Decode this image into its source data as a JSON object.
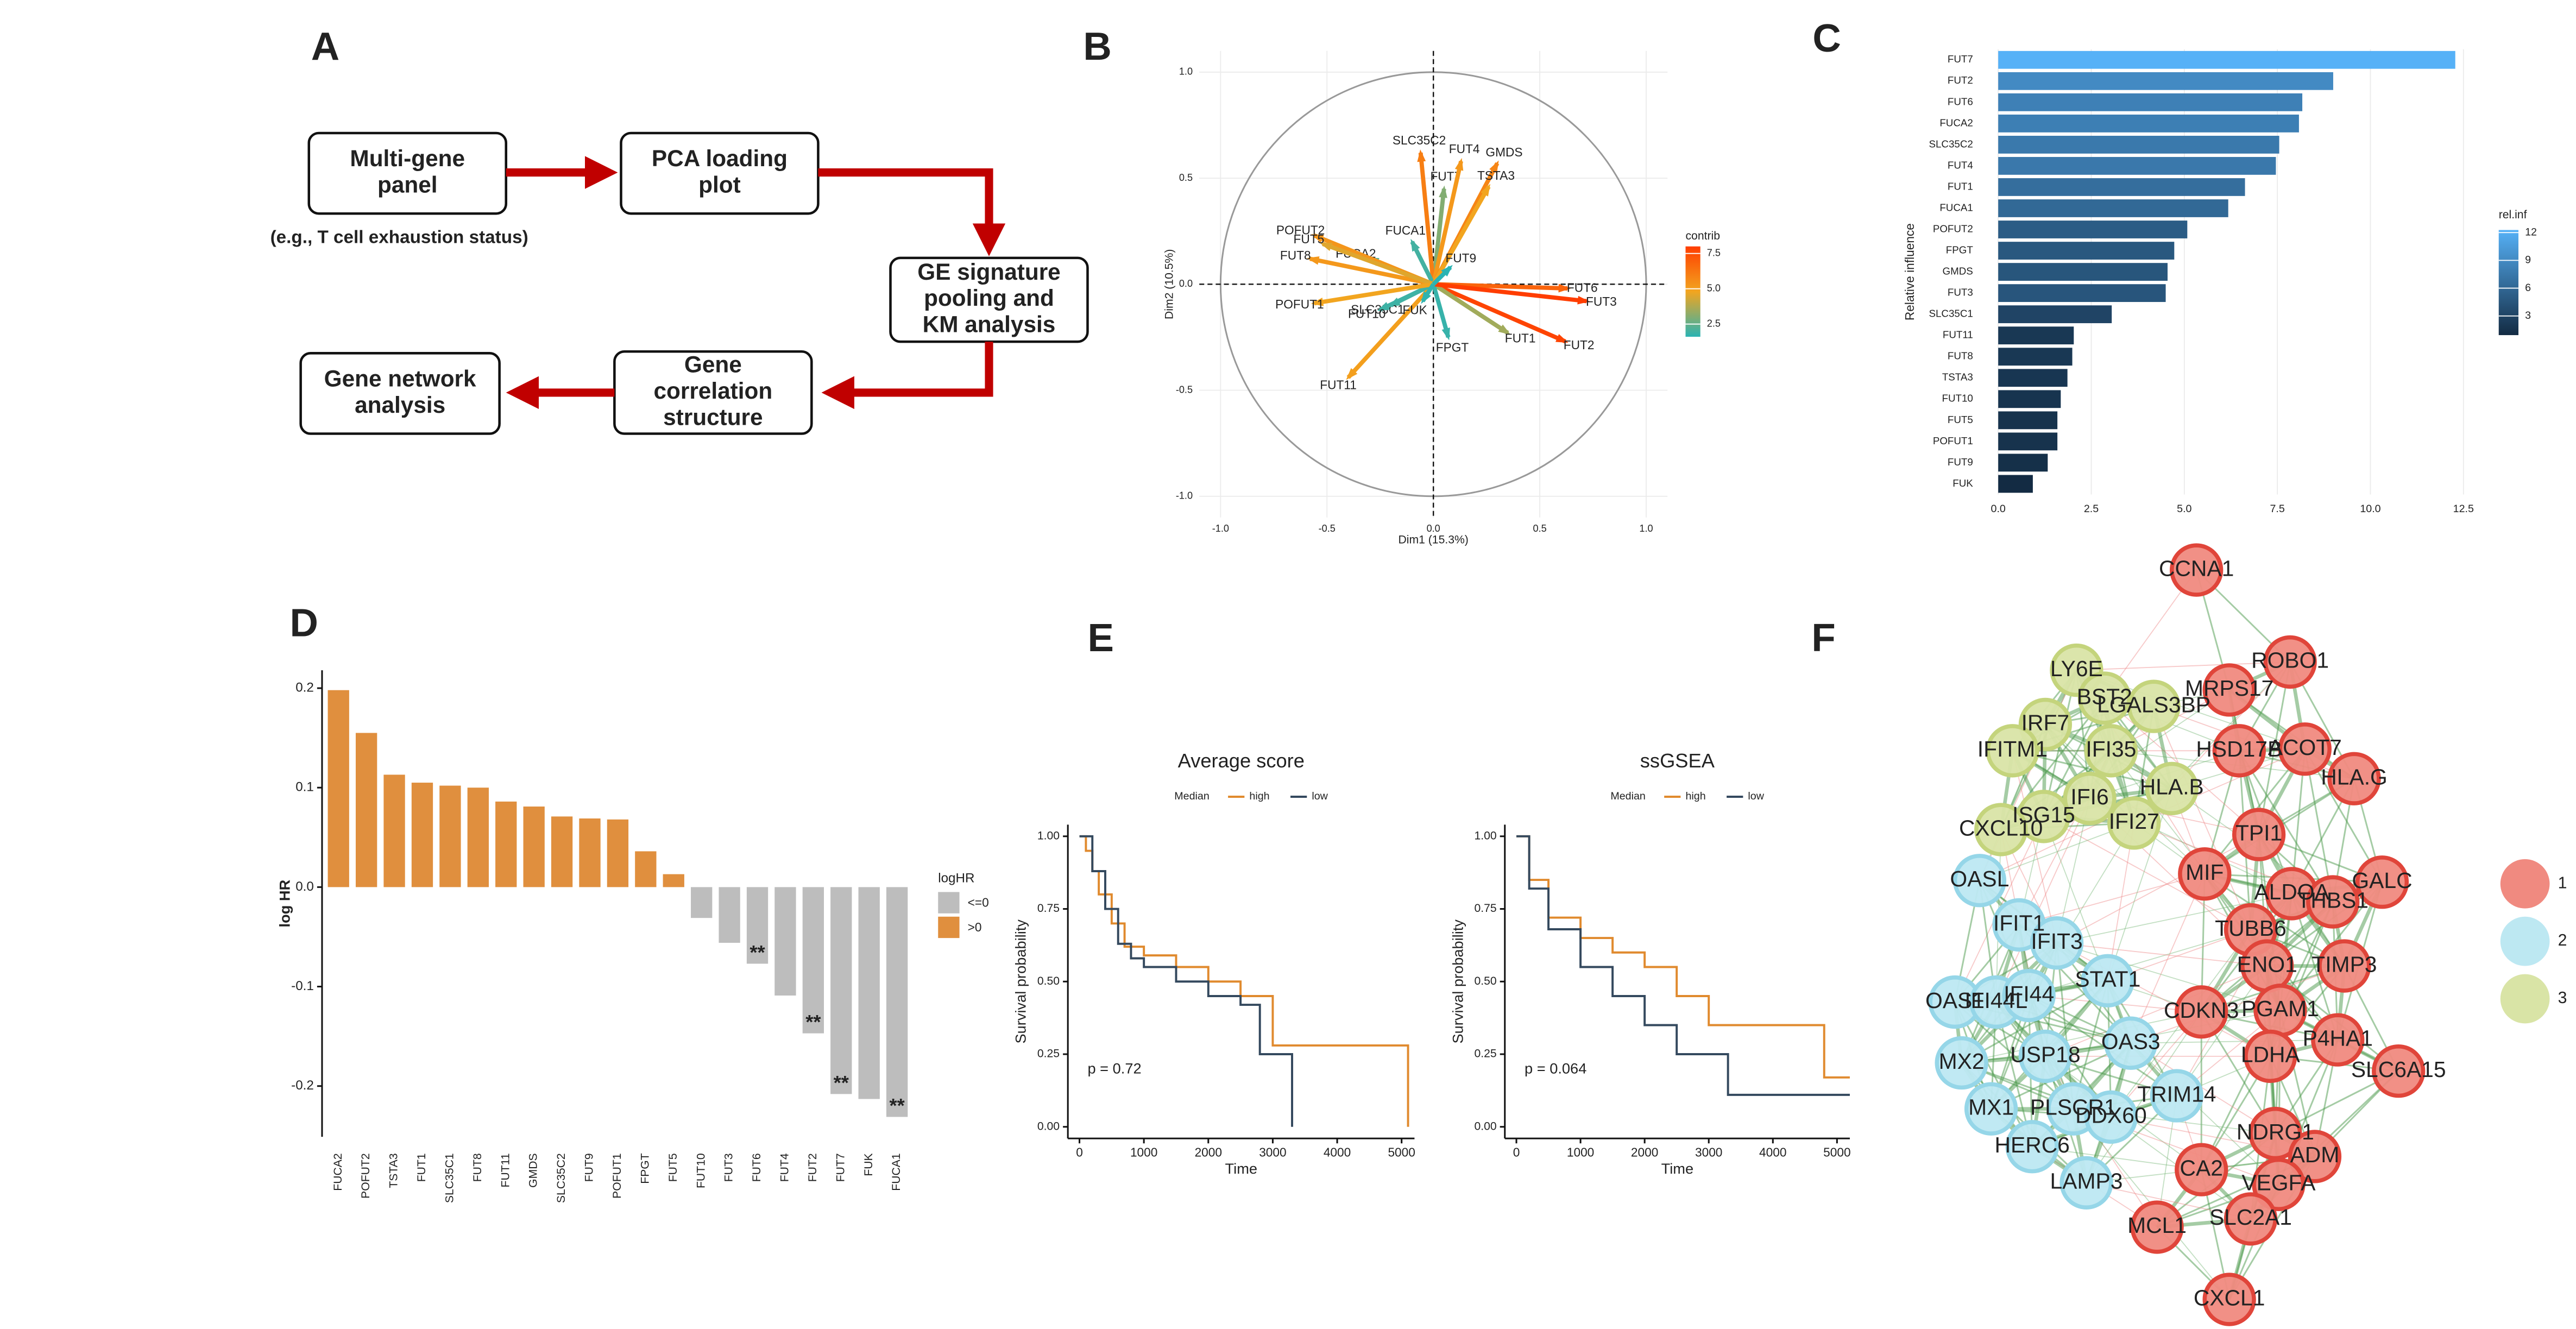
{
  "panel_labels": [
    "A",
    "B",
    "C",
    "D",
    "E",
    "F"
  ],
  "diagram": {
    "nodes": [
      {
        "lines": [
          "Multi-gene",
          "panel"
        ]
      },
      {
        "lines": [
          "PCA loading",
          "plot"
        ]
      },
      {
        "lines": [
          "GE signature",
          "pooling and",
          "KM analysis"
        ]
      },
      {
        "lines": [
          "Gene",
          "correlation",
          "structure"
        ]
      },
      {
        "lines": [
          "Gene network",
          "analysis"
        ]
      }
    ],
    "note": "(e.g., T cell exhaustion status)"
  },
  "chart_data": [
    {
      "type": "biplot",
      "xlabel": "Dim1 (15.3%)",
      "ylabel": "Dim2 (10.5%)",
      "labels": [
        "FUT7",
        "FUT2",
        "FUT6",
        "FUCA2",
        "SLC35C2",
        "FUT4",
        "FUT1",
        "FUCA1",
        "POFUT2",
        "FPGT",
        "GMDS",
        "FUT3",
        "SLC35C1",
        "FUT11",
        "FUT8",
        "TSTA3",
        "FUT10",
        "FUT5",
        "POFUT1",
        "FUT9",
        "FUK"
      ],
      "x": [
        0.05,
        0.62,
        0.63,
        -0.3,
        -0.06,
        0.13,
        0.35,
        -0.1,
        -0.56,
        0.07,
        0.3,
        0.72,
        -0.2,
        -0.4,
        -0.58,
        0.26,
        -0.25,
        -0.52,
        -0.56,
        0.08,
        -0.05
      ],
      "values": [
        0.45,
        -0.27,
        -0.02,
        0.12,
        0.62,
        0.58,
        -0.23,
        0.2,
        0.23,
        -0.25,
        0.57,
        -0.08,
        -0.1,
        -0.44,
        0.12,
        0.46,
        -0.12,
        0.19,
        -0.09,
        0.08,
        -0.08
      ],
      "contrib": [
        3.0,
        7.8,
        6.8,
        2.2,
        6.0,
        5.2,
        3.5,
        2.0,
        5.3,
        1.8,
        5.8,
        8.0,
        2.0,
        5.0,
        5.2,
        4.8,
        1.9,
        4.5,
        4.8,
        1.6,
        1.7
      ],
      "xlim": [
        -1.1,
        1.1
      ],
      "ylim": [
        -1.1,
        1.1
      ],
      "xticks": [
        {
          "value": -1,
          "label": "-1.0"
        },
        -0.5,
        {
          "value": 0,
          "label": "0.0"
        },
        0.5,
        {
          "value": 1,
          "label": "1.0"
        }
      ],
      "yticks": [
        {
          "value": -1,
          "label": "-1.0"
        },
        -0.5,
        {
          "value": 0,
          "label": "0.0"
        },
        0.5,
        {
          "value": 1,
          "label": "1.0"
        }
      ],
      "legend_title": "contrib",
      "colorbar_ticks": [
        2.5,
        {
          "value": 5,
          "label": "5.0"
        },
        7.5
      ],
      "colors": [
        "#2ab3b3",
        "#f2a51f",
        "#ff3d00"
      ],
      "grid": true
    },
    {
      "type": "hbar",
      "ylabel": "Relative influence",
      "categories": [
        "FUT7",
        "FUT2",
        "FUT6",
        "FUCA2",
        "SLC35C2",
        "FUT4",
        "FUT1",
        "FUCA1",
        "POFUT2",
        "FPGT",
        "GMDS",
        "FUT3",
        "SLC35C1",
        "FUT11",
        "FUT8",
        "TSTA3",
        "FUT10",
        "FUT5",
        "POFUT1",
        "FUT9",
        "FUK"
      ],
      "values": [
        12.28,
        9.0,
        8.17,
        8.08,
        7.55,
        7.46,
        6.63,
        6.18,
        5.08,
        4.73,
        4.55,
        4.5,
        3.05,
        2.03,
        1.99,
        1.86,
        1.68,
        1.59,
        1.59,
        1.33,
        0.93
      ],
      "xlim": [
        -0.5,
        13.05
      ],
      "xticks": [
        {
          "value": 0,
          "label": "0.0"
        },
        2.5,
        {
          "value": 5,
          "label": "5.0"
        },
        7.5,
        {
          "value": 10,
          "label": "10.0"
        },
        12.5
      ],
      "legend_title": "rel.inf",
      "colorbar_ticks": [
        3,
        6,
        9,
        12
      ],
      "colors": [
        "#132B43",
        "#56B1F7"
      ],
      "grid": true
    },
    {
      "type": "bar",
      "ylabel": "log HR",
      "categories": [
        "FUCA2",
        "POFUT2",
        "TSTA3",
        "FUT1",
        "SLC35C1",
        "FUT8",
        "FUT11",
        "GMDS",
        "SLC35C2",
        "FUT9",
        "POFUT1",
        "FPGT",
        "FUT5",
        "FUT10",
        "FUT3",
        "FUT6",
        "FUT4",
        "FUT2",
        "FUT7",
        "FUK",
        "FUCA1"
      ],
      "values": [
        0.198,
        0.155,
        0.113,
        0.105,
        0.102,
        0.1,
        0.086,
        0.081,
        0.071,
        0.069,
        0.068,
        0.036,
        0.013,
        -0.031,
        -0.056,
        -0.077,
        -0.109,
        -0.147,
        -0.208,
        -0.213,
        -0.231
      ],
      "significance": [
        null,
        null,
        null,
        null,
        null,
        null,
        null,
        null,
        null,
        null,
        null,
        null,
        null,
        null,
        null,
        "**",
        null,
        "**",
        "**",
        null,
        "**"
      ],
      "ylim": [
        -0.251,
        0.218
      ],
      "yticks": [
        -0.2,
        -0.1,
        {
          "value": 0,
          "label": "0.0"
        },
        0.1,
        0.2
      ],
      "legend_title": "logHR",
      "legend": [
        {
          "label": "<=0",
          "color": "#bdbdbd"
        },
        {
          "label": ">0",
          "color": "#e08f3e"
        }
      ]
    },
    {
      "type": "km",
      "title": "Average score",
      "xlabel": "Time",
      "ylabel": "Survival probability",
      "annotation": "p = 0.72",
      "legend_title": "Median",
      "series": [
        {
          "name": "high",
          "color": "#e08a2e",
          "x": [
            0,
            100,
            100,
            200,
            200,
            300,
            300,
            500,
            500,
            700,
            700,
            1000,
            1000,
            1500,
            1500,
            2000,
            2000,
            2500,
            2500,
            3000,
            3000,
            5100,
            5100
          ],
          "values": [
            1,
            1,
            0.95,
            0.95,
            0.88,
            0.88,
            0.8,
            0.8,
            0.7,
            0.7,
            0.62,
            0.62,
            0.59,
            0.59,
            0.55,
            0.55,
            0.5,
            0.5,
            0.45,
            0.45,
            0.28,
            0.28,
            0
          ]
        },
        {
          "name": "low",
          "color": "#34495e",
          "x": [
            0,
            200,
            200,
            400,
            400,
            600,
            600,
            800,
            800,
            1000,
            1000,
            1500,
            1500,
            2000,
            2000,
            2500,
            2500,
            2800,
            2800,
            3300,
            3300
          ],
          "values": [
            1,
            1,
            0.88,
            0.88,
            0.75,
            0.75,
            0.63,
            0.63,
            0.58,
            0.58,
            0.55,
            0.55,
            0.5,
            0.5,
            0.45,
            0.45,
            0.42,
            0.42,
            0.25,
            0.25,
            0
          ]
        }
      ],
      "xlim": [
        -180,
        5200
      ],
      "ylim": [
        -0.04,
        1.04
      ],
      "xticks": [
        0,
        1000,
        2000,
        3000,
        4000,
        5000
      ],
      "yticks": [
        {
          "value": 0,
          "label": "0.00"
        },
        0.25,
        {
          "value": 0.5,
          "label": "0.50"
        },
        0.75,
        {
          "value": 1,
          "label": "1.00"
        }
      ]
    },
    {
      "type": "km",
      "title": "ssGSEA",
      "xlabel": "Time",
      "ylabel": "Survival probability",
      "annotation": "p = 0.064",
      "legend_title": "Median",
      "series": [
        {
          "name": "high",
          "color": "#e08a2e",
          "x": [
            0,
            200,
            200,
            500,
            500,
            1000,
            1000,
            1500,
            1500,
            2000,
            2000,
            2500,
            2500,
            3000,
            3000,
            4800,
            4800,
            5200
          ],
          "values": [
            1,
            1,
            0.85,
            0.85,
            0.72,
            0.72,
            0.65,
            0.65,
            0.6,
            0.6,
            0.55,
            0.55,
            0.45,
            0.45,
            0.35,
            0.35,
            0.17,
            0.17
          ]
        },
        {
          "name": "low",
          "color": "#34495e",
          "x": [
            0,
            200,
            200,
            500,
            500,
            1000,
            1000,
            1500,
            1500,
            2000,
            2000,
            2500,
            2500,
            3300,
            3300,
            5200
          ],
          "values": [
            1,
            1,
            0.82,
            0.82,
            0.68,
            0.68,
            0.55,
            0.55,
            0.45,
            0.45,
            0.35,
            0.35,
            0.25,
            0.25,
            0.11,
            0.11
          ]
        }
      ],
      "xlim": [
        -180,
        5200
      ],
      "ylim": [
        -0.04,
        1.04
      ],
      "xticks": [
        0,
        1000,
        2000,
        3000,
        4000,
        5000
      ],
      "yticks": [
        {
          "value": 0,
          "label": "0.00"
        },
        0.25,
        {
          "value": 0.5,
          "label": "0.50"
        },
        0.75,
        {
          "value": 1,
          "label": "1.00"
        }
      ]
    }
  ],
  "network": {
    "nodes": [
      {
        "label": "CCNA1",
        "cluster": 1
      },
      {
        "label": "ROBO1",
        "cluster": 1
      },
      {
        "label": "MRPS17",
        "cluster": 1
      },
      {
        "label": "HSD17B",
        "cluster": 1
      },
      {
        "label": "ACOT7",
        "cluster": 1
      },
      {
        "label": "HLA.G",
        "cluster": 1
      },
      {
        "label": "TPI1",
        "cluster": 1
      },
      {
        "label": "MIF",
        "cluster": 1
      },
      {
        "label": "GALC",
        "cluster": 1
      },
      {
        "label": "ALDOA",
        "cluster": 1
      },
      {
        "label": "THBS1",
        "cluster": 1
      },
      {
        "label": "TUBB6",
        "cluster": 1
      },
      {
        "label": "ENO1",
        "cluster": 1
      },
      {
        "label": "TIMP3",
        "cluster": 1
      },
      {
        "label": "CDKN3",
        "cluster": 1
      },
      {
        "label": "PGAM1",
        "cluster": 1
      },
      {
        "label": "P4HA1",
        "cluster": 1
      },
      {
        "label": "SLC6A15",
        "cluster": 1
      },
      {
        "label": "LDHA",
        "cluster": 1
      },
      {
        "label": "NDRG1",
        "cluster": 1
      },
      {
        "label": "ADM",
        "cluster": 1
      },
      {
        "label": "CA2",
        "cluster": 1
      },
      {
        "label": "VEGFA",
        "cluster": 1
      },
      {
        "label": "SLC2A1",
        "cluster": 1
      },
      {
        "label": "MCL1",
        "cluster": 1
      },
      {
        "label": "CXCL1",
        "cluster": 1
      },
      {
        "label": "LY6E",
        "cluster": 3
      },
      {
        "label": "BST2",
        "cluster": 3
      },
      {
        "label": "LGALS3BP",
        "cluster": 3
      },
      {
        "label": "IRF7",
        "cluster": 3
      },
      {
        "label": "IFITM1",
        "cluster": 3
      },
      {
        "label": "IFI35",
        "cluster": 3
      },
      {
        "label": "HLA.B",
        "cluster": 3
      },
      {
        "label": "IFI6",
        "cluster": 3
      },
      {
        "label": "ISG15",
        "cluster": 3
      },
      {
        "label": "IFI27",
        "cluster": 3
      },
      {
        "label": "CXCL10",
        "cluster": 3
      },
      {
        "label": "OASL",
        "cluster": 2
      },
      {
        "label": "IFIT1",
        "cluster": 2
      },
      {
        "label": "IFIT3",
        "cluster": 2
      },
      {
        "label": "STAT1",
        "cluster": 2
      },
      {
        "label": "OAS1",
        "cluster": 2
      },
      {
        "label": "IFI44L",
        "cluster": 2
      },
      {
        "label": "IFI44",
        "cluster": 2
      },
      {
        "label": "OAS3",
        "cluster": 2
      },
      {
        "label": "USP18",
        "cluster": 2
      },
      {
        "label": "MX2",
        "cluster": 2
      },
      {
        "label": "PLSCR1",
        "cluster": 2
      },
      {
        "label": "TRIM14",
        "cluster": 2
      },
      {
        "label": "DDX60",
        "cluster": 2
      },
      {
        "label": "MX1",
        "cluster": 2
      },
      {
        "label": "HERC6",
        "cluster": 2
      },
      {
        "label": "LAMP3",
        "cluster": 2
      }
    ],
    "legend": [
      {
        "label": "1",
        "color": "#f08a80"
      },
      {
        "label": "2",
        "color": "#bde8f2"
      },
      {
        "label": "3",
        "color": "#d9e4a6"
      }
    ]
  }
}
